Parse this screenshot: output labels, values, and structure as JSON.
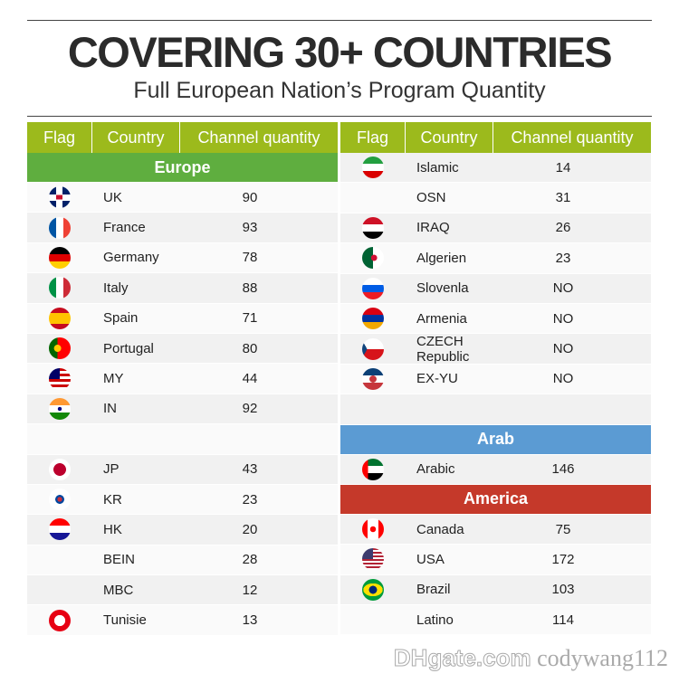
{
  "title": "COVERING 30+ COUNTRIES",
  "subtitle": "Full European Nation’s Program Quantity",
  "headers": {
    "flag": "Flag",
    "country": "Country",
    "channel": "Channel quantity"
  },
  "colors": {
    "header": "#9cba1c",
    "europe": "#5fae3f",
    "arab": "#5b9bd3",
    "america": "#c5392a"
  },
  "left": [
    {
      "type": "banner",
      "label": "Europe",
      "color": "europe"
    },
    {
      "flag": "uk",
      "country": "UK",
      "qty": "90"
    },
    {
      "flag": "france",
      "country": "France",
      "qty": "93"
    },
    {
      "flag": "germany",
      "country": "Germany",
      "qty": "78"
    },
    {
      "flag": "italy",
      "country": "Italy",
      "qty": "88"
    },
    {
      "flag": "spain",
      "country": "Spain",
      "qty": "71"
    },
    {
      "flag": "portugal",
      "country": "Portugal",
      "qty": "80"
    },
    {
      "flag": "malaysia",
      "country": "MY",
      "qty": "44"
    },
    {
      "flag": "india",
      "country": "IN",
      "qty": "92"
    },
    {
      "type": "blank"
    },
    {
      "flag": "japan",
      "country": "JP",
      "qty": "43"
    },
    {
      "flag": "korea",
      "country": "KR",
      "qty": "23"
    },
    {
      "flag": "croatia",
      "country": "HK",
      "qty": "20"
    },
    {
      "flag": "",
      "country": "BEIN",
      "qty": "28"
    },
    {
      "flag": "",
      "country": "MBC",
      "qty": "12"
    },
    {
      "flag": "tunisia",
      "country": "Tunisie",
      "qty": "13"
    }
  ],
  "right": [
    {
      "flag": "iran",
      "country": "Islamic",
      "qty": "14"
    },
    {
      "flag": "",
      "country": "OSN",
      "qty": "31"
    },
    {
      "flag": "iraq",
      "country": "IRAQ",
      "qty": "26"
    },
    {
      "flag": "algeria",
      "country": "Algerien",
      "qty": "23"
    },
    {
      "flag": "slovenia",
      "country": "Slovenla",
      "qty": "NO"
    },
    {
      "flag": "armenia",
      "country": "Armenia",
      "qty": "NO"
    },
    {
      "flag": "czech",
      "country": "CZECH Republic",
      "qty": "NO"
    },
    {
      "flag": "yugoslavia",
      "country": "EX-YU",
      "qty": "NO"
    },
    {
      "type": "blank"
    },
    {
      "type": "banner",
      "label": "Arab",
      "color": "arab"
    },
    {
      "flag": "uae",
      "country": "Arabic",
      "qty": "146"
    },
    {
      "type": "banner",
      "label": "America",
      "color": "america"
    },
    {
      "flag": "canada",
      "country": "Canada",
      "qty": "75"
    },
    {
      "flag": "usa",
      "country": "USA",
      "qty": "172"
    },
    {
      "flag": "brazil",
      "country": "Brazil",
      "qty": "103"
    },
    {
      "flag": "",
      "country": "Latino",
      "qty": "114"
    }
  ],
  "watermark": {
    "logo": "DHgate.com",
    "user": "codywang112"
  }
}
